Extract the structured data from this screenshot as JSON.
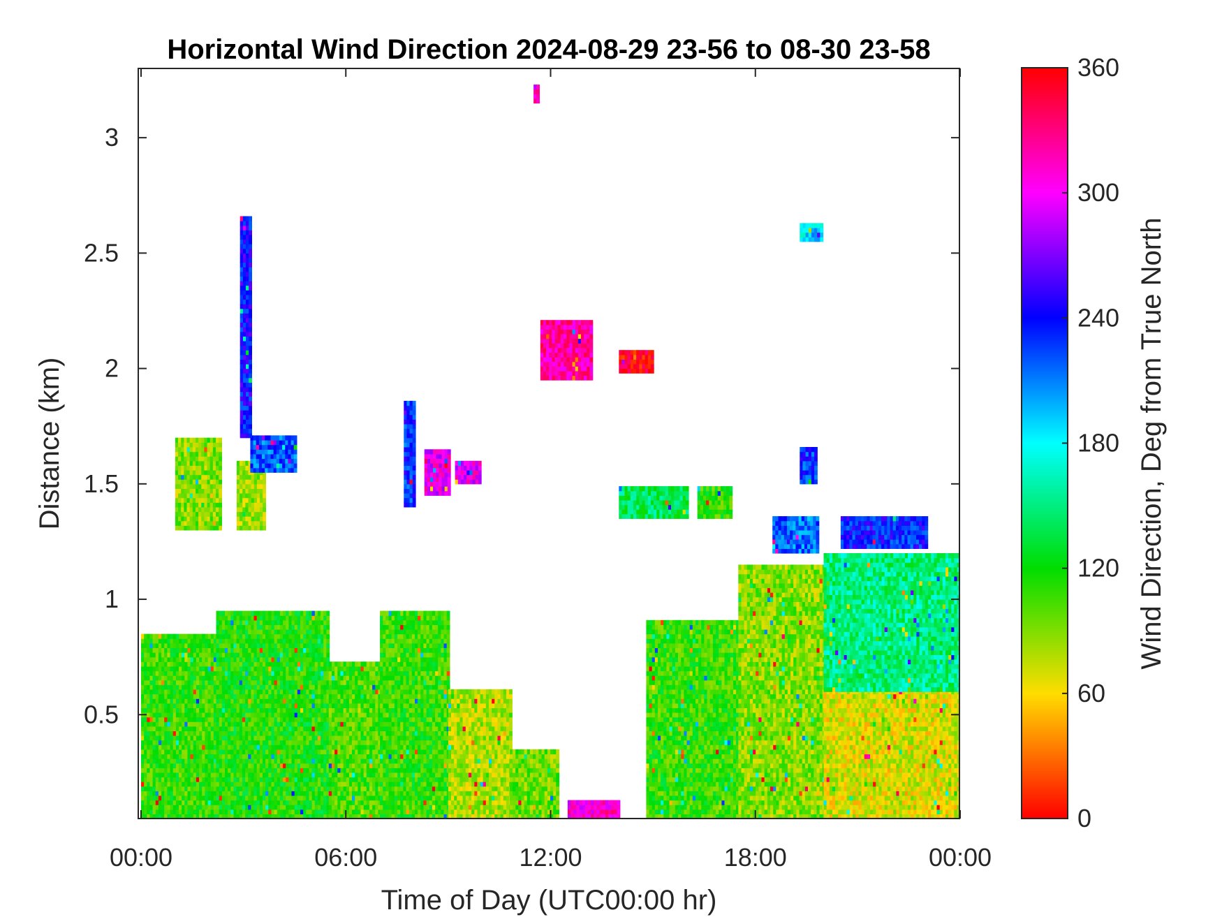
{
  "chart_data": {
    "type": "heatmap",
    "title": "Horizontal Wind Direction 2024-08-29 23-56 to 08-30 23-58",
    "xlabel": "Time of Day (UTC00:00 hr)",
    "ylabel": "Distance (km)",
    "colorbar_label": "Wind Direction, Deg from True North",
    "x_ticks": [
      "00:00",
      "06:00",
      "12:00",
      "18:00",
      "00:00"
    ],
    "x_tick_hours": [
      0,
      6,
      12,
      18,
      24
    ],
    "y_ticks": [
      "0.5",
      "1",
      "1.5",
      "2",
      "2.5",
      "3"
    ],
    "y_tick_values": [
      0.5,
      1,
      1.5,
      2,
      2.5,
      3
    ],
    "colorbar_ticks": [
      "0",
      "60",
      "120",
      "180",
      "240",
      "300",
      "360"
    ],
    "colorbar_values": [
      0,
      60,
      120,
      180,
      240,
      300,
      360
    ],
    "xlim": [
      0,
      24
    ],
    "ylim": [
      0.05,
      3.3
    ],
    "clim": [
      0,
      360
    ],
    "colormap": [
      "#ff0000",
      "#ffdd00",
      "#00dd00",
      "#00ffff",
      "#0000ff",
      "#ff00ff",
      "#ff0000"
    ],
    "regions": [
      {
        "x": [
          0,
          2.2
        ],
        "y": [
          0.05,
          0.85
        ],
        "dir": 110
      },
      {
        "x": [
          2.2,
          5.5
        ],
        "y": [
          0.05,
          0.95
        ],
        "dir": 115
      },
      {
        "x": [
          5.5,
          7.0
        ],
        "y": [
          0.05,
          0.72
        ],
        "dir": 105
      },
      {
        "x": [
          7.0,
          9.0
        ],
        "y": [
          0.05,
          0.95
        ],
        "dir": 110
      },
      {
        "x": [
          9.0,
          10.8
        ],
        "y": [
          0.05,
          0.6
        ],
        "dir": 80
      },
      {
        "x": [
          10.8,
          12.2
        ],
        "y": [
          0.05,
          0.35
        ],
        "dir": 95
      },
      {
        "x": [
          12.5,
          14.0
        ],
        "y": [
          0.05,
          0.12
        ],
        "dir": 310
      },
      {
        "x": [
          14.8,
          17.5
        ],
        "y": [
          0.05,
          0.9
        ],
        "dir": 110
      },
      {
        "x": [
          17.5,
          20.0
        ],
        "y": [
          0.05,
          1.15
        ],
        "dir": 90
      },
      {
        "x": [
          20.0,
          24.0
        ],
        "y": [
          0.05,
          0.6
        ],
        "dir": 70
      },
      {
        "x": [
          20.0,
          24.0
        ],
        "y": [
          0.6,
          1.2
        ],
        "dir": 150
      },
      {
        "x": [
          18.5,
          19.8
        ],
        "y": [
          1.2,
          1.35
        ],
        "dir": 215
      },
      {
        "x": [
          20.5,
          23.0
        ],
        "y": [
          1.22,
          1.35
        ],
        "dir": 235
      },
      {
        "x": [
          19.3,
          19.8
        ],
        "y": [
          1.5,
          1.65
        ],
        "dir": 230
      },
      {
        "x": [
          1.0,
          2.3
        ],
        "y": [
          1.3,
          1.7
        ],
        "dir": 90
      },
      {
        "x": [
          2.8,
          3.6
        ],
        "y": [
          1.3,
          1.6
        ],
        "dir": 85
      },
      {
        "x": [
          3.2,
          4.5
        ],
        "y": [
          1.55,
          1.7
        ],
        "dir": 220
      },
      {
        "x": [
          2.9,
          3.2
        ],
        "y": [
          1.7,
          2.65
        ],
        "dir": 240
      },
      {
        "x": [
          7.7,
          8.0
        ],
        "y": [
          1.4,
          1.85
        ],
        "dir": 230
      },
      {
        "x": [
          8.3,
          9.0
        ],
        "y": [
          1.45,
          1.65
        ],
        "dir": 300
      },
      {
        "x": [
          9.2,
          9.9
        ],
        "y": [
          1.5,
          1.6
        ],
        "dir": 300
      },
      {
        "x": [
          11.7,
          13.2
        ],
        "y": [
          1.95,
          2.2
        ],
        "dir": 320
      },
      {
        "x": [
          14.0,
          15.0
        ],
        "y": [
          1.98,
          2.08
        ],
        "dir": 355
      },
      {
        "x": [
          14.0,
          16.0
        ],
        "y": [
          1.35,
          1.48
        ],
        "dir": 140
      },
      {
        "x": [
          16.3,
          17.3
        ],
        "y": [
          1.35,
          1.48
        ],
        "dir": 110
      },
      {
        "x": [
          19.3,
          19.9
        ],
        "y": [
          2.55,
          2.62
        ],
        "dir": 190
      },
      {
        "x": [
          11.5,
          11.6
        ],
        "y": [
          3.15,
          3.22
        ],
        "dir": 310
      }
    ]
  }
}
